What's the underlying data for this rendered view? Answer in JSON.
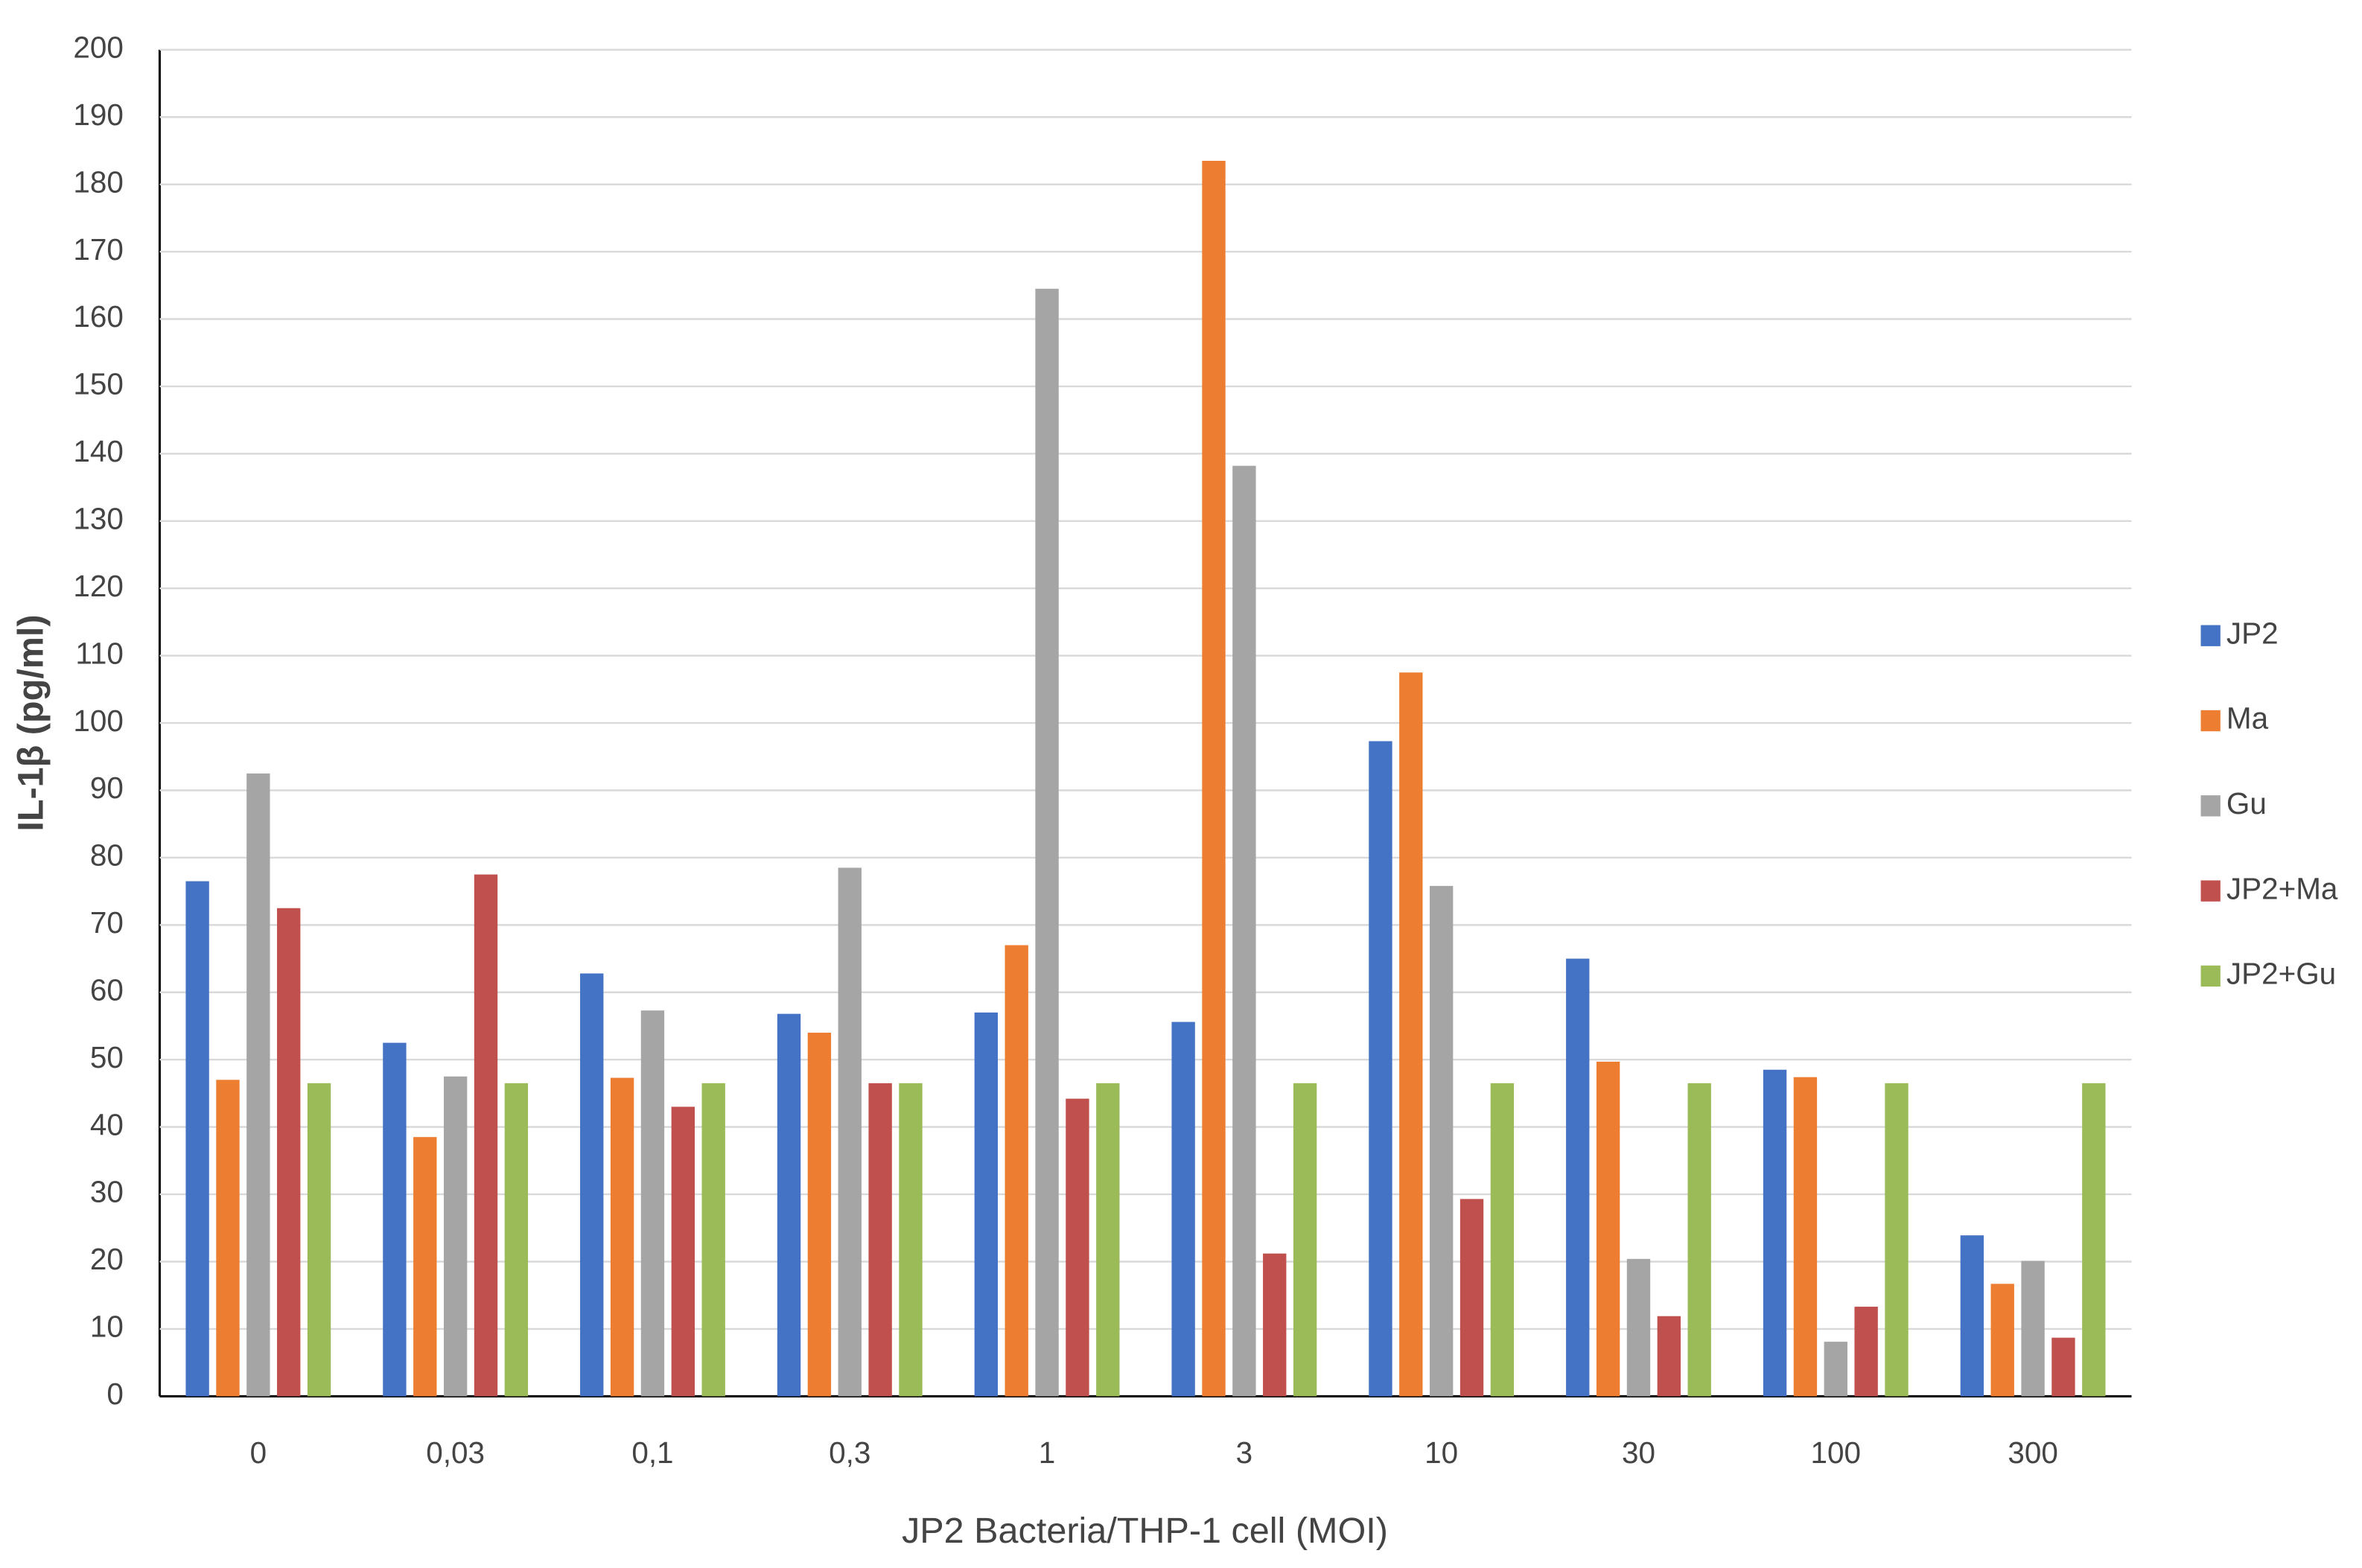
{
  "chart_data": {
    "type": "bar",
    "x_label": "JP2 Bacteria/THP-1 cell (MOI)",
    "y_label": "IL-1β (pg/ml)",
    "categories": [
      "0",
      "0,03",
      "0,1",
      "0,3",
      "1",
      "3",
      "10",
      "30",
      "100",
      "300"
    ],
    "series": [
      {
        "name": "JP2",
        "color": "#4472c4",
        "values": [
          76.5,
          52.5,
          62.8,
          56.8,
          57,
          55.6,
          97.3,
          65,
          48.5,
          23.9
        ]
      },
      {
        "name": "Ma",
        "color": "#ed7d31",
        "values": [
          47,
          38.5,
          47.3,
          54,
          67,
          183.5,
          107.5,
          49.7,
          47.4,
          16.7
        ]
      },
      {
        "name": "Gu",
        "color": "#a5a5a5",
        "values": [
          92.5,
          47.5,
          57.3,
          78.5,
          164.5,
          138.2,
          75.8,
          20.4,
          8.1,
          20.1
        ]
      },
      {
        "name": "JP2+Ma",
        "color": "#c0504d",
        "values": [
          72.5,
          77.5,
          43,
          46.5,
          44.2,
          21.2,
          29.3,
          11.9,
          13.3,
          8.7
        ]
      },
      {
        "name": "JP2+Gu",
        "color": "#9bbb59",
        "values": [
          46.5,
          46.5,
          46.5,
          46.5,
          46.5,
          46.5,
          46.5,
          46.5,
          46.5,
          46.5
        ]
      }
    ],
    "ylim": [
      0,
      200
    ],
    "yticks": [
      0,
      10,
      20,
      30,
      40,
      50,
      60,
      70,
      80,
      90,
      100,
      110,
      120,
      130,
      140,
      150,
      160,
      170,
      180,
      190,
      200
    ],
    "grid": true,
    "legend": "right"
  }
}
